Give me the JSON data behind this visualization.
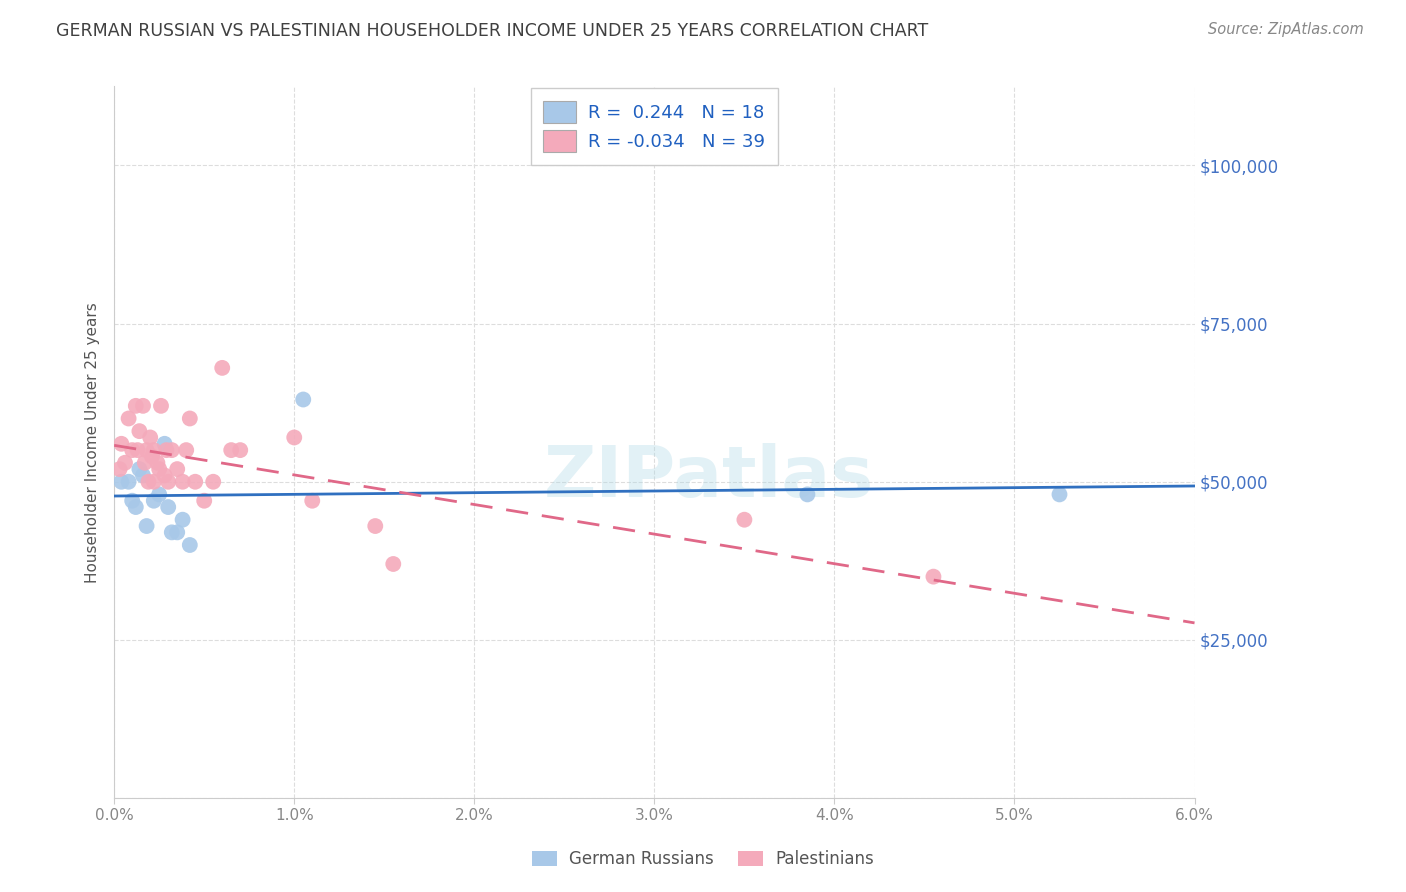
{
  "title": "GERMAN RUSSIAN VS PALESTINIAN HOUSEHOLDER INCOME UNDER 25 YEARS CORRELATION CHART",
  "source": "Source: ZipAtlas.com",
  "ylabel": "Householder Income Under 25 years",
  "xlim": [
    0.0,
    6.0
  ],
  "ylim": [
    0,
    112500
  ],
  "yticks": [
    0,
    25000,
    50000,
    75000,
    100000
  ],
  "ytick_labels": [
    "",
    "$25,000",
    "$50,000",
    "$75,000",
    "$100,000"
  ],
  "xtick_positions": [
    0,
    1,
    2,
    3,
    4,
    5,
    6
  ],
  "xtick_labels": [
    "0.0%",
    "1.0%",
    "2.0%",
    "3.0%",
    "4.0%",
    "5.0%",
    "6.0%"
  ],
  "watermark": "ZIPatlas",
  "legend_r1": "R =  0.244   N = 18",
  "legend_r2": "R = -0.034   N = 39",
  "blue_color": "#A8C8E8",
  "pink_color": "#F4AABB",
  "blue_line_color": "#3070C0",
  "pink_line_color": "#E06888",
  "background_color": "#FFFFFF",
  "grid_color": "#DDDDDD",
  "title_color": "#404040",
  "ytick_label_color": "#4472C4",
  "german_russians_x": [
    0.04,
    0.08,
    0.1,
    0.12,
    0.14,
    0.16,
    0.18,
    0.22,
    0.25,
    0.28,
    0.3,
    0.32,
    0.35,
    0.38,
    0.42,
    3.85,
    5.25,
    1.05
  ],
  "german_russians_y": [
    50000,
    50000,
    47000,
    46000,
    52000,
    51000,
    43000,
    47000,
    48000,
    56000,
    46000,
    42000,
    42000,
    44000,
    40000,
    48000,
    48000,
    63000
  ],
  "palestinians_x": [
    0.03,
    0.04,
    0.06,
    0.08,
    0.1,
    0.12,
    0.13,
    0.14,
    0.16,
    0.17,
    0.18,
    0.19,
    0.2,
    0.21,
    0.22,
    0.22,
    0.24,
    0.25,
    0.26,
    0.28,
    0.29,
    0.3,
    0.32,
    0.35,
    0.38,
    0.4,
    0.42,
    0.45,
    0.5,
    0.55,
    0.6,
    0.65,
    0.7,
    1.0,
    1.1,
    1.45,
    1.55,
    3.5,
    4.55
  ],
  "palestinians_y": [
    52000,
    56000,
    53000,
    60000,
    55000,
    62000,
    55000,
    58000,
    62000,
    53000,
    55000,
    50000,
    57000,
    54000,
    55000,
    50000,
    53000,
    52000,
    62000,
    51000,
    55000,
    50000,
    55000,
    52000,
    50000,
    55000,
    60000,
    50000,
    47000,
    50000,
    68000,
    55000,
    55000,
    57000,
    47000,
    43000,
    37000,
    44000,
    35000
  ]
}
